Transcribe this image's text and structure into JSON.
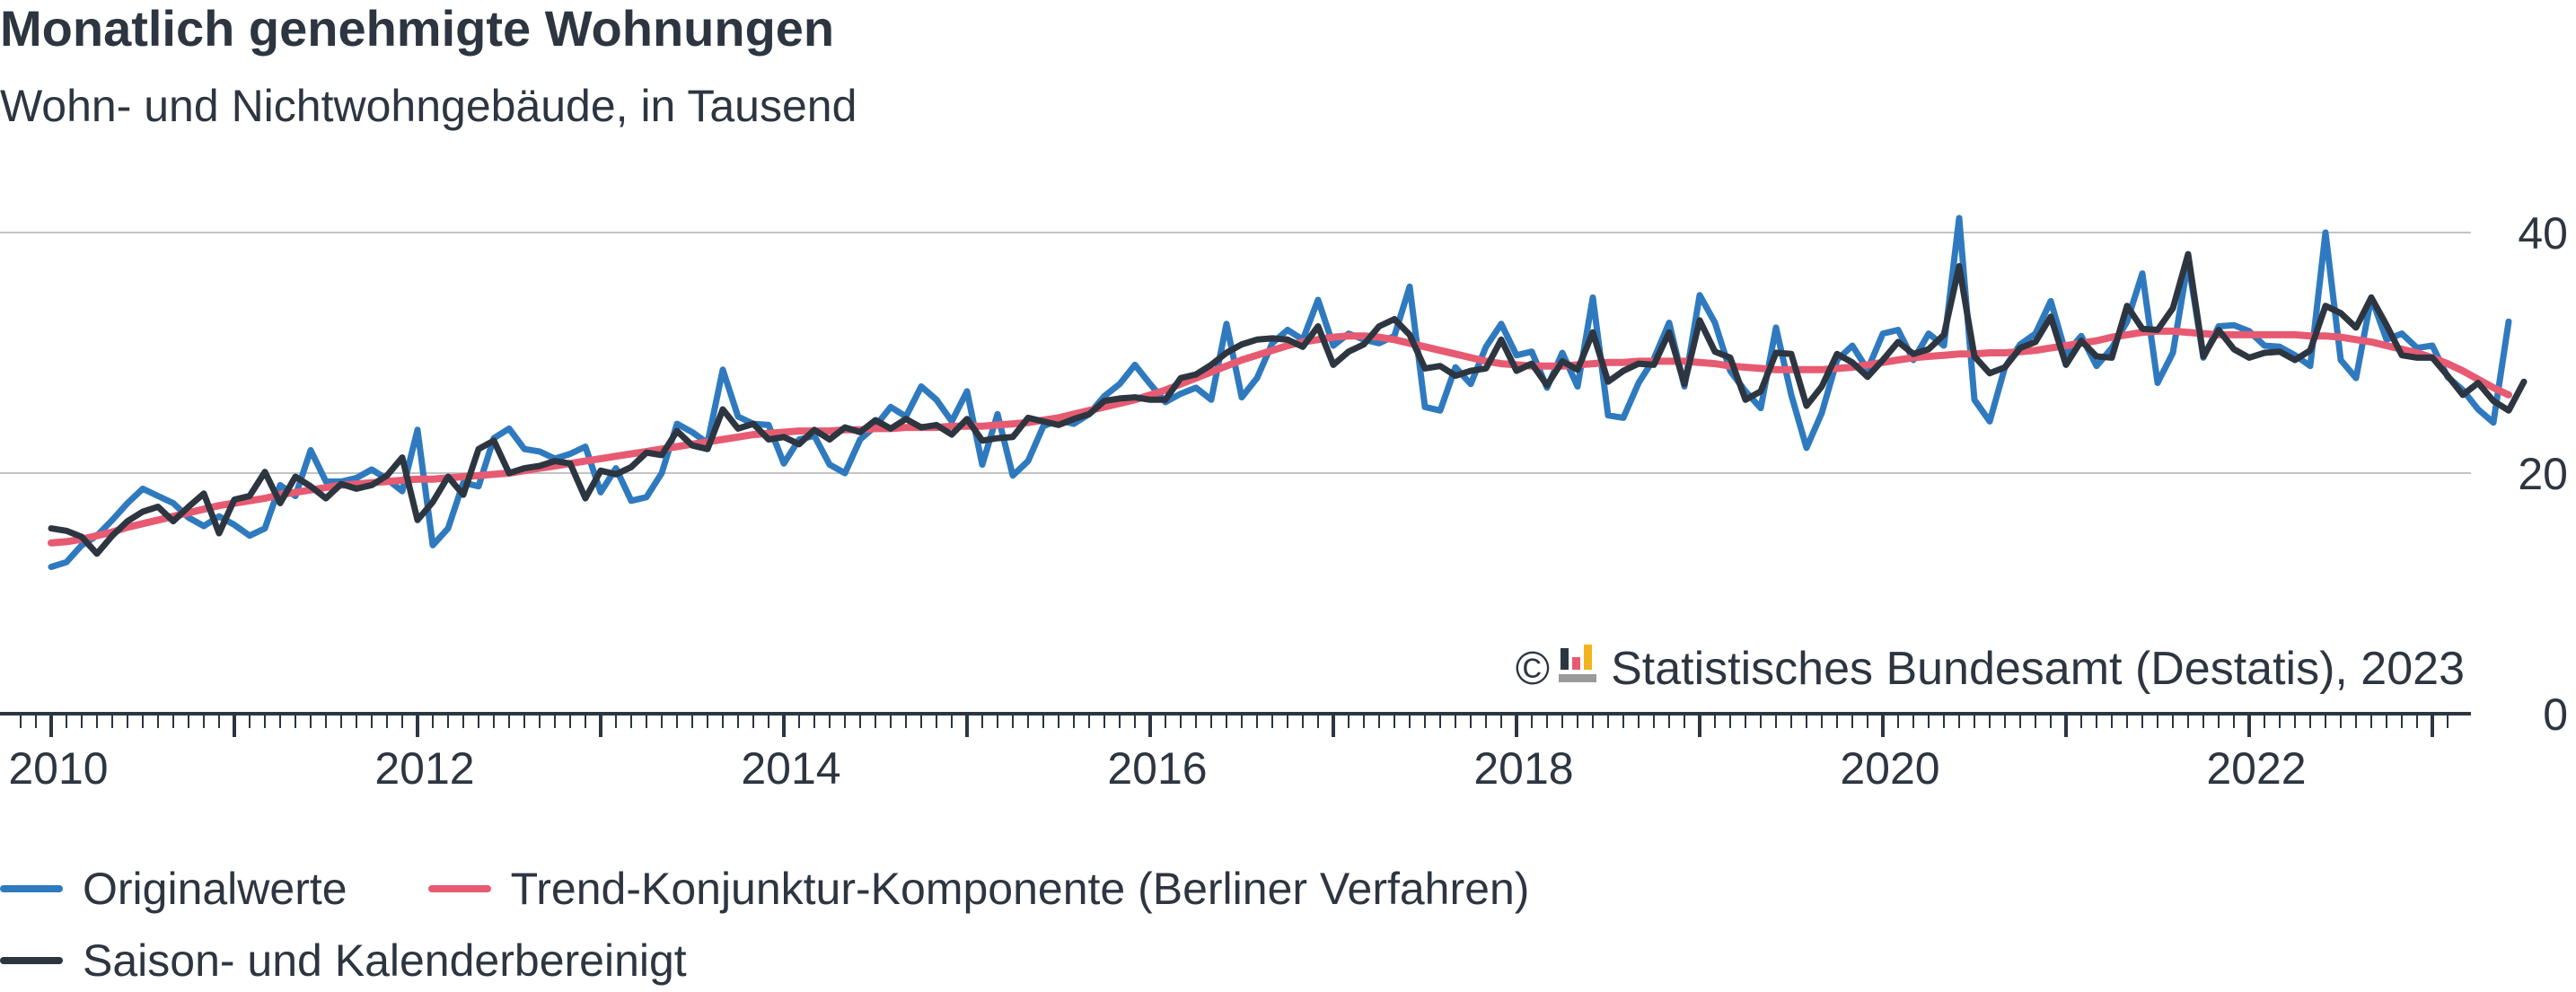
{
  "title": "Monatlich genehmigte Wohnungen",
  "subtitle": "Wohn- und Nichtwohngebäude, in Tausend",
  "source": {
    "copyright_symbol": "©",
    "text": "Statistisches Bundesamt (Destatis), 2023"
  },
  "colors": {
    "original": "#2f7abf",
    "trend": "#e75b72",
    "seasonal": "#2d3640",
    "grid": "#c3c3c3",
    "axis": "#2d3640",
    "text": "#2d3640"
  },
  "chart_data": {
    "type": "line",
    "x_start": "2010-01",
    "x_frequency": "monthly",
    "x_ticks": [
      "2010",
      "2012",
      "2014",
      "2016",
      "2018",
      "2020",
      "2022"
    ],
    "y_ticks": [
      "0",
      "20",
      "40"
    ],
    "ylim": [
      0,
      40
    ],
    "xlim": [
      "2009-11",
      "2023-02"
    ],
    "grid": "horizontal",
    "legend_position": "bottom",
    "series": [
      {
        "name": "Originalwerte",
        "color": "#2f7abf",
        "values": [
          12.2,
          12.6,
          14.0,
          14.8,
          16.1,
          17.5,
          18.7,
          18.1,
          17.5,
          16.3,
          15.6,
          16.4,
          15.7,
          14.8,
          15.4,
          19.0,
          18.1,
          21.9,
          19.3,
          19.3,
          19.6,
          20.3,
          19.5,
          18.5,
          23.6,
          14.0,
          15.4,
          19.2,
          18.9,
          22.9,
          23.7,
          22.0,
          21.8,
          21.2,
          21.6,
          22.2,
          18.4,
          20.4,
          17.7,
          18.0,
          20.0,
          24.1,
          23.4,
          22.5,
          28.6,
          24.7,
          24.1,
          24.0,
          20.8,
          22.8,
          23.1,
          20.7,
          20.0,
          22.8,
          23.9,
          25.5,
          24.7,
          27.2,
          26.1,
          24.3,
          26.8,
          20.7,
          24.9,
          19.8,
          21.0,
          23.9,
          24.4,
          24.1,
          24.9,
          26.4,
          27.4,
          29.0,
          27.4,
          25.9,
          26.6,
          27.1,
          26.1,
          32.4,
          26.3,
          27.9,
          30.8,
          31.9,
          31.1,
          34.4,
          30.6,
          31.6,
          31.1,
          30.8,
          31.4,
          35.5,
          25.5,
          25.2,
          28.8,
          27.4,
          30.5,
          32.4,
          29.8,
          30.1,
          27.1,
          30.0,
          27.2,
          34.6,
          24.8,
          24.6,
          27.5,
          29.5,
          32.5,
          27.2,
          34.8,
          32.5,
          28.5,
          26.8,
          25.4,
          32.1,
          26.5,
          22.1,
          25.0,
          29.4,
          30.6,
          28.6,
          31.6,
          31.9,
          29.4,
          31.6,
          30.6,
          41.2,
          26.1,
          24.3,
          28.8,
          30.7,
          31.6,
          34.3,
          29.9,
          31.4,
          28.9,
          30.4,
          32.6,
          36.6,
          27.5,
          30.0,
          37.6,
          29.6,
          32.2,
          32.3,
          31.8,
          30.6,
          30.5,
          29.8,
          28.9,
          40.0,
          29.4,
          27.9,
          34.6,
          31.1,
          31.6,
          30.4,
          30.6,
          28.0,
          26.9,
          25.3,
          24.2,
          32.6
        ]
      },
      {
        "name": "Trend-Konjunktur-Komponente (Berliner Verfahren)",
        "color": "#e75b72",
        "values": [
          14.2,
          14.3,
          14.5,
          14.8,
          15.1,
          15.5,
          15.8,
          16.1,
          16.4,
          16.7,
          17.0,
          17.3,
          17.5,
          17.7,
          17.9,
          18.2,
          18.4,
          18.6,
          18.8,
          19.0,
          19.1,
          19.2,
          19.3,
          19.4,
          19.5,
          19.5,
          19.6,
          19.7,
          19.8,
          19.9,
          20.0,
          20.2,
          20.4,
          20.6,
          20.8,
          21.0,
          21.2,
          21.4,
          21.6,
          21.8,
          22.0,
          22.2,
          22.4,
          22.6,
          22.8,
          23.0,
          23.2,
          23.3,
          23.4,
          23.5,
          23.5,
          23.5,
          23.6,
          23.6,
          23.7,
          23.7,
          23.8,
          23.8,
          23.8,
          23.9,
          23.9,
          23.9,
          24.0,
          24.1,
          24.2,
          24.4,
          24.6,
          24.9,
          25.2,
          25.5,
          25.8,
          26.1,
          26.5,
          26.9,
          27.4,
          27.9,
          28.4,
          28.9,
          29.4,
          29.8,
          30.2,
          30.6,
          30.9,
          31.1,
          31.3,
          31.4,
          31.4,
          31.3,
          31.1,
          30.8,
          30.5,
          30.2,
          29.9,
          29.6,
          29.3,
          29.1,
          29.0,
          28.9,
          28.9,
          28.9,
          29.0,
          29.1,
          29.2,
          29.2,
          29.3,
          29.3,
          29.3,
          29.3,
          29.2,
          29.1,
          28.9,
          28.8,
          28.7,
          28.6,
          28.6,
          28.6,
          28.6,
          28.7,
          28.8,
          29.0,
          29.2,
          29.4,
          29.6,
          29.7,
          29.8,
          29.9,
          29.9,
          30.0,
          30.0,
          30.1,
          30.2,
          30.4,
          30.6,
          30.8,
          31.0,
          31.3,
          31.5,
          31.7,
          31.8,
          31.8,
          31.7,
          31.6,
          31.5,
          31.5,
          31.5,
          31.5,
          31.5,
          31.5,
          31.4,
          31.4,
          31.3,
          31.1,
          30.9,
          30.6,
          30.3,
          30.0,
          29.6,
          29.1,
          28.5,
          27.8,
          27.1,
          26.5
        ]
      },
      {
        "name": "Saison- und Kalenderbereinigt",
        "color": "#2d3640",
        "values": [
          15.4,
          15.2,
          14.7,
          13.3,
          14.8,
          16.0,
          16.8,
          17.2,
          16.0,
          17.2,
          18.3,
          15.0,
          17.8,
          18.1,
          20.1,
          17.5,
          19.7,
          18.9,
          17.9,
          19.1,
          18.7,
          19.0,
          19.8,
          21.3,
          16.1,
          17.6,
          19.7,
          18.2,
          22.0,
          22.7,
          20.0,
          20.4,
          20.6,
          21.0,
          20.8,
          17.9,
          20.2,
          19.9,
          20.5,
          21.7,
          21.5,
          23.5,
          22.3,
          22.0,
          25.3,
          23.7,
          24.1,
          22.8,
          23.0,
          22.4,
          23.6,
          22.8,
          23.8,
          23.4,
          24.4,
          23.7,
          24.5,
          23.8,
          24.0,
          23.2,
          24.5,
          22.7,
          22.9,
          23.0,
          24.6,
          24.3,
          24.0,
          24.5,
          24.9,
          26.0,
          26.2,
          26.3,
          26.1,
          26.1,
          27.9,
          28.2,
          29.0,
          30.0,
          30.7,
          31.1,
          31.2,
          31.1,
          30.5,
          32.2,
          29.0,
          30.1,
          30.7,
          32.2,
          32.8,
          31.5,
          28.7,
          28.9,
          28.1,
          28.5,
          28.7,
          31.1,
          28.5,
          29.1,
          27.3,
          29.3,
          28.6,
          31.7,
          27.6,
          28.5,
          29.1,
          29.0,
          31.7,
          27.4,
          32.7,
          30.1,
          29.6,
          26.1,
          26.8,
          30.0,
          29.9,
          25.6,
          27.2,
          29.9,
          29.2,
          28.0,
          29.4,
          30.9,
          29.9,
          30.3,
          31.5,
          37.2,
          29.7,
          28.3,
          28.8,
          30.4,
          30.9,
          33.0,
          29.0,
          31.0,
          29.7,
          29.6,
          33.9,
          32.0,
          31.9,
          33.7,
          38.2,
          29.7,
          31.9,
          30.3,
          29.6,
          30.0,
          30.1,
          29.4,
          30.2,
          33.9,
          33.3,
          32.1,
          34.6,
          32.3,
          29.8,
          29.6,
          29.6,
          28.1,
          26.5,
          27.5,
          26.0,
          25.2,
          27.6
        ]
      }
    ]
  }
}
